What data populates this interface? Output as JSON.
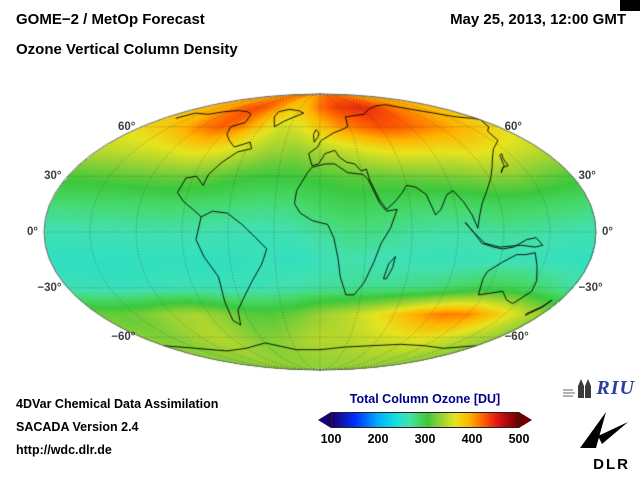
{
  "header": {
    "title_line1": "GOME−2 / MetOp Forecast",
    "title_line2": "Ozone Vertical Column Density",
    "datetime": "May 25, 2013, 12:00 GMT"
  },
  "footer": {
    "credit_line1": "4DVar Chemical Data Assimilation",
    "credit_line2": "SACADA Version 2.4",
    "credit_line3": "http://wdc.dlr.de"
  },
  "colorbar": {
    "title": "Total Column Ozone [DU]",
    "ticks": [
      "100",
      "200",
      "300",
      "400",
      "500"
    ],
    "min": 100,
    "max": 500,
    "stops": [
      [
        100,
        "#1a006e"
      ],
      [
        150,
        "#0030ff"
      ],
      [
        200,
        "#00b0ff"
      ],
      [
        235,
        "#10dee0"
      ],
      [
        265,
        "#42e0b0"
      ],
      [
        285,
        "#46d96a"
      ],
      [
        305,
        "#3cc83c"
      ],
      [
        335,
        "#9ad234"
      ],
      [
        365,
        "#e6e41e"
      ],
      [
        395,
        "#ffb400"
      ],
      [
        425,
        "#ff5f00"
      ],
      [
        455,
        "#e01414"
      ],
      [
        500,
        "#6e0000"
      ]
    ]
  },
  "logos": {
    "riu": "RIU",
    "dlr": "DLR"
  },
  "map": {
    "lat_labels": [
      {
        "lat": 60,
        "text": "60°"
      },
      {
        "lat": 30,
        "text": "30°"
      },
      {
        "lat": 0,
        "text": "0°"
      },
      {
        "lat": -30,
        "text": "−30°"
      },
      {
        "lat": -60,
        "text": "−60°"
      }
    ],
    "coastlines": [
      [
        [
          -166,
          66
        ],
        [
          -160,
          70
        ],
        [
          -140,
          69
        ],
        [
          -128,
          71
        ],
        [
          -112,
          72
        ],
        [
          -96,
          71
        ],
        [
          -86,
          69
        ],
        [
          -80,
          63
        ],
        [
          -90,
          60
        ],
        [
          -86,
          55
        ],
        [
          -79,
          51
        ],
        [
          -71,
          47
        ],
        [
          -60,
          50
        ],
        [
          -56,
          46
        ],
        [
          -66,
          44
        ],
        [
          -74,
          38
        ],
        [
          -80,
          31
        ],
        [
          -81,
          25
        ],
        [
          -88,
          30
        ],
        [
          -95,
          29
        ],
        [
          -97,
          21
        ],
        [
          -91,
          16
        ],
        [
          -84,
          12
        ],
        [
          -78,
          8
        ]
      ],
      [
        [
          -78,
          8
        ],
        [
          -71,
          11
        ],
        [
          -61,
          10
        ],
        [
          -51,
          4
        ],
        [
          -42,
          -3
        ],
        [
          -35,
          -9
        ],
        [
          -39,
          -17
        ],
        [
          -48,
          -27
        ],
        [
          -58,
          -37
        ],
        [
          -65,
          -43
        ],
        [
          -70,
          -52
        ],
        [
          -74,
          -49
        ],
        [
          -72,
          -38
        ],
        [
          -70,
          -24
        ],
        [
          -77,
          -13
        ],
        [
          -81,
          -4
        ],
        [
          -78,
          8
        ]
      ],
      [
        [
          -46,
          60
        ],
        [
          -54,
          67
        ],
        [
          -55,
          71
        ],
        [
          -44,
          73
        ],
        [
          -30,
          72
        ],
        [
          -21,
          70
        ],
        [
          -39,
          64
        ],
        [
          -46,
          60
        ]
      ],
      [
        [
          -6,
          35
        ],
        [
          4,
          37
        ],
        [
          11,
          37
        ],
        [
          20,
          32
        ],
        [
          31,
          31
        ],
        [
          34,
          28
        ],
        [
          40,
          15
        ],
        [
          44,
          11
        ],
        [
          51,
          12
        ],
        [
          46,
          2
        ],
        [
          40,
          -6
        ],
        [
          36,
          -16
        ],
        [
          31,
          -27
        ],
        [
          25,
          -34
        ],
        [
          19,
          -34
        ],
        [
          14,
          -24
        ],
        [
          12,
          -14
        ],
        [
          9,
          -3
        ],
        [
          5,
          4
        ],
        [
          -5,
          6
        ],
        [
          -13,
          10
        ],
        [
          -17,
          15
        ],
        [
          -16,
          22
        ],
        [
          -9,
          32
        ],
        [
          -6,
          35
        ]
      ],
      [
        [
          -9,
          43
        ],
        [
          -2,
          47
        ],
        [
          1,
          51
        ],
        [
          8,
          54
        ],
        [
          13,
          56
        ],
        [
          21,
          58
        ],
        [
          28,
          60
        ],
        [
          30,
          67
        ],
        [
          41,
          68
        ],
        [
          55,
          69
        ],
        [
          69,
          73
        ],
        [
          90,
          76
        ],
        [
          110,
          77
        ],
        [
          130,
          73
        ],
        [
          146,
          70
        ],
        [
          161,
          67
        ],
        [
          176,
          66
        ],
        [
          180,
          65
        ],
        [
          170,
          60
        ],
        [
          160,
          57
        ],
        [
          155,
          51
        ],
        [
          142,
          46
        ],
        [
          134,
          41
        ],
        [
          127,
          35
        ],
        [
          121,
          29
        ],
        [
          114,
          22
        ],
        [
          108,
          15
        ],
        [
          105,
          9
        ],
        [
          103,
          2
        ],
        [
          100,
          9
        ],
        [
          96,
          16
        ],
        [
          91,
          22
        ],
        [
          86,
          20
        ],
        [
          80,
          12
        ],
        [
          76,
          9
        ],
        [
          72,
          20
        ],
        [
          66,
          24
        ],
        [
          60,
          25
        ],
        [
          56,
          21
        ],
        [
          50,
          16
        ],
        [
          44,
          12
        ],
        [
          40,
          17
        ],
        [
          35,
          28
        ],
        [
          34,
          34
        ],
        [
          30,
          33
        ],
        [
          26,
          37
        ],
        [
          20,
          38
        ],
        [
          15,
          41
        ],
        [
          12,
          45
        ],
        [
          4,
          43
        ],
        [
          -1,
          37
        ],
        [
          -6,
          36
        ],
        [
          -9,
          43
        ]
      ],
      [
        [
          113,
          -25
        ],
        [
          114,
          -21
        ],
        [
          122,
          -16
        ],
        [
          130,
          -12
        ],
        [
          136,
          -12
        ],
        [
          142,
          -11
        ],
        [
          146,
          -18
        ],
        [
          151,
          -26
        ],
        [
          153,
          -32
        ],
        [
          147,
          -39
        ],
        [
          140,
          -37
        ],
        [
          132,
          -32
        ],
        [
          124,
          -33
        ],
        [
          116,
          -34
        ],
        [
          113,
          -25
        ]
      ],
      [
        [
          -5,
          50
        ],
        [
          -2,
          53
        ],
        [
          -1,
          56
        ],
        [
          -4,
          58
        ],
        [
          -6,
          55
        ],
        [
          -5,
          50
        ]
      ],
      [
        [
          131,
          32
        ],
        [
          135,
          35
        ],
        [
          140,
          36
        ],
        [
          141,
          40
        ],
        [
          144,
          43
        ],
        [
          141,
          42
        ],
        [
          137,
          36
        ],
        [
          132,
          33
        ],
        [
          131,
          32
        ]
      ],
      [
        [
          44,
          -25
        ],
        [
          46,
          -17
        ],
        [
          50,
          -13
        ],
        [
          49,
          -19
        ],
        [
          46,
          -25
        ],
        [
          44,
          -25
        ]
      ],
      [
        [
          95,
          5
        ],
        [
          101,
          -1
        ],
        [
          106,
          -6
        ],
        [
          114,
          -8
        ],
        [
          120,
          -9
        ],
        [
          127,
          -8
        ],
        [
          135,
          -4
        ],
        [
          141,
          -3
        ],
        [
          146,
          -7
        ],
        [
          141,
          -8
        ],
        [
          132,
          -7
        ],
        [
          118,
          -8
        ],
        [
          108,
          -6
        ],
        [
          100,
          0
        ],
        [
          95,
          5
        ]
      ],
      [
        [
          167,
          -45
        ],
        [
          172,
          -41
        ],
        [
          174,
          -37
        ],
        [
          173,
          -41
        ],
        [
          168,
          -46
        ],
        [
          167,
          -45
        ]
      ],
      [
        [
          -180,
          -66
        ],
        [
          -150,
          -68
        ],
        [
          -120,
          -70
        ],
        [
          -90,
          -68
        ],
        [
          -60,
          -64
        ],
        [
          -30,
          -69
        ],
        [
          0,
          -69
        ],
        [
          30,
          -67
        ],
        [
          60,
          -66
        ],
        [
          90,
          -65
        ],
        [
          120,
          -66
        ],
        [
          150,
          -68
        ],
        [
          180,
          -66
        ]
      ]
    ]
  },
  "chart_data": {
    "type": "heatmap",
    "title": "Ozone Vertical Column Density",
    "subtitle": "GOME−2 / MetOp Forecast, May 25, 2013, 12:00 GMT",
    "units": "DU",
    "legend_title": "Total Column Ozone [DU]",
    "colorbar_ticks": [
      100,
      200,
      300,
      400,
      500
    ],
    "range": [
      100,
      500
    ],
    "projection": "mollweide",
    "graticule_step_deg": 30,
    "lats": [
      90,
      75,
      60,
      45,
      30,
      15,
      0,
      -15,
      -30,
      -45,
      -60,
      -75,
      -90
    ],
    "lons": [
      -180,
      -160,
      -140,
      -120,
      -100,
      -80,
      -60,
      -40,
      -20,
      0,
      20,
      40,
      60,
      80,
      100,
      120,
      140,
      160,
      180
    ],
    "values_du": [
      [
        405,
        405,
        405,
        405,
        405,
        405,
        405,
        405,
        405,
        410,
        415,
        415,
        415,
        410,
        408,
        405,
        405,
        405,
        405
      ],
      [
        390,
        395,
        400,
        420,
        432,
        425,
        400,
        382,
        392,
        420,
        436,
        442,
        446,
        440,
        425,
        410,
        400,
        392,
        390
      ],
      [
        372,
        380,
        392,
        412,
        425,
        410,
        380,
        356,
        362,
        386,
        406,
        420,
        430,
        426,
        416,
        406,
        395,
        382,
        372
      ],
      [
        346,
        350,
        356,
        362,
        370,
        364,
        350,
        336,
        332,
        342,
        352,
        362,
        370,
        370,
        366,
        370,
        364,
        355,
        346
      ],
      [
        310,
        312,
        315,
        318,
        320,
        318,
        310,
        305,
        305,
        310,
        315,
        318,
        320,
        322,
        325,
        330,
        328,
        318,
        310
      ],
      [
        282,
        283,
        285,
        286,
        287,
        285,
        283,
        280,
        282,
        290,
        296,
        292,
        289,
        287,
        289,
        293,
        291,
        286,
        282
      ],
      [
        262,
        263,
        264,
        265,
        266,
        265,
        263,
        262,
        264,
        272,
        278,
        276,
        270,
        267,
        268,
        271,
        269,
        265,
        262
      ],
      [
        255,
        254,
        254,
        255,
        256,
        255,
        256,
        258,
        256,
        260,
        266,
        263,
        261,
        259,
        259,
        262,
        261,
        258,
        255
      ],
      [
        262,
        260,
        258,
        260,
        263,
        262,
        261,
        263,
        267,
        271,
        273,
        275,
        277,
        281,
        289,
        296,
        292,
        281,
        268
      ],
      [
        320,
        318,
        325,
        336,
        341,
        330,
        315,
        312,
        320,
        335,
        346,
        361,
        381,
        401,
        416,
        411,
        386,
        356,
        331
      ],
      [
        330,
        326,
        330,
        340,
        346,
        336,
        326,
        330,
        340,
        346,
        346,
        351,
        356,
        361,
        366,
        361,
        351,
        341,
        331
      ],
      [
        331,
        330,
        330,
        333,
        335,
        333,
        330,
        331,
        333,
        335,
        335,
        336,
        337,
        338,
        338,
        337,
        335,
        333,
        331
      ],
      [
        332,
        332,
        332,
        332,
        332,
        332,
        332,
        332,
        332,
        332,
        332,
        332,
        332,
        332,
        332,
        332,
        332,
        332,
        332
      ]
    ]
  }
}
